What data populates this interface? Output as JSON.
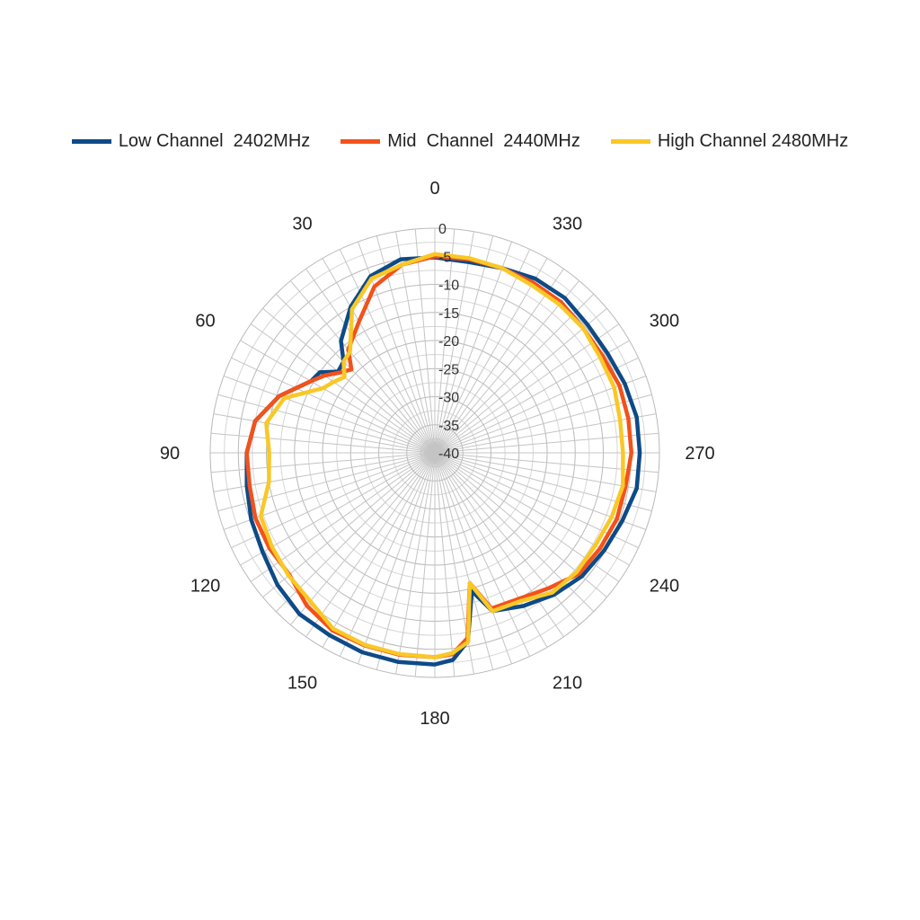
{
  "chart_data": {
    "type": "polar-line",
    "title": "",
    "radial_axis": {
      "min": -40,
      "max": 0,
      "step": 5,
      "tick_labels": [
        "0",
        "-5",
        "-10",
        "-15",
        "-20",
        "-25",
        "-30",
        "-35",
        "-40"
      ]
    },
    "angular_axis": {
      "direction": "counterclockwise",
      "zero_at": "top",
      "tick_labels": [
        "0",
        "30",
        "60",
        "90",
        "120",
        "150",
        "180",
        "210",
        "240",
        "270",
        "300",
        "330"
      ],
      "tick_angles": [
        0,
        30,
        60,
        90,
        120,
        150,
        180,
        210,
        240,
        270,
        300,
        330
      ]
    },
    "grid": true,
    "legend": {
      "position": "top"
    },
    "angles": [
      0,
      10,
      20,
      30,
      40,
      45,
      50,
      55,
      60,
      70,
      80,
      90,
      100,
      110,
      120,
      130,
      140,
      150,
      160,
      170,
      180,
      185,
      190,
      195,
      200,
      210,
      220,
      230,
      240,
      250,
      260,
      270,
      280,
      290,
      300,
      310,
      320,
      330,
      340,
      350
    ],
    "series": [
      {
        "name": "Low Channel  2402MHz",
        "color": "#0e4a87",
        "values": [
          -5.2,
          -5,
          -6.5,
          -10,
          -14,
          -17,
          -17.5,
          -15,
          -14.5,
          -10.5,
          -7.5,
          -6.5,
          -6,
          -5.2,
          -4.6,
          -3.4,
          -2.5,
          -2.5,
          -2.2,
          -2.2,
          -2.3,
          -3,
          -6,
          -14.5,
          -10,
          -8.5,
          -7,
          -5.8,
          -5.2,
          -4.5,
          -3.5,
          -3.5,
          -3.5,
          -4,
          -4.5,
          -4.5,
          -4,
          -4.2,
          -5,
          -5.5
        ]
      },
      {
        "name": "Mid  Channel  2440MHz",
        "color": "#f2521b",
        "values": [
          -5,
          -6,
          -8.5,
          -13,
          -16,
          -19,
          -17.8,
          -16,
          -14.5,
          -10.5,
          -7.5,
          -6.5,
          -6.5,
          -6,
          -6,
          -6.2,
          -4.5,
          -3.5,
          -3.5,
          -3.5,
          -3.6,
          -4,
          -6.5,
          -16,
          -10.5,
          -10,
          -8.5,
          -6.5,
          -6,
          -5.5,
          -5.5,
          -5,
          -5,
          -5,
          -5.5,
          -5.5,
          -5,
          -5,
          -5,
          -5
        ]
      },
      {
        "name": "High Channel 2480MHz",
        "color": "#f9c827",
        "values": [
          -4.6,
          -6,
          -7,
          -10.5,
          -16.5,
          -17,
          -19,
          -18,
          -17,
          -11.5,
          -9.5,
          -10.5,
          -10,
          -7,
          -6.5,
          -6,
          -5.5,
          -3.8,
          -3.6,
          -3.6,
          -3.6,
          -4.2,
          -5.8,
          -16,
          -10,
          -9.5,
          -7.5,
          -7,
          -7,
          -6.5,
          -6,
          -6.5,
          -6.5,
          -6,
          -6,
          -5.5,
          -5.5,
          -5.5,
          -5,
          -4.8
        ]
      }
    ]
  }
}
